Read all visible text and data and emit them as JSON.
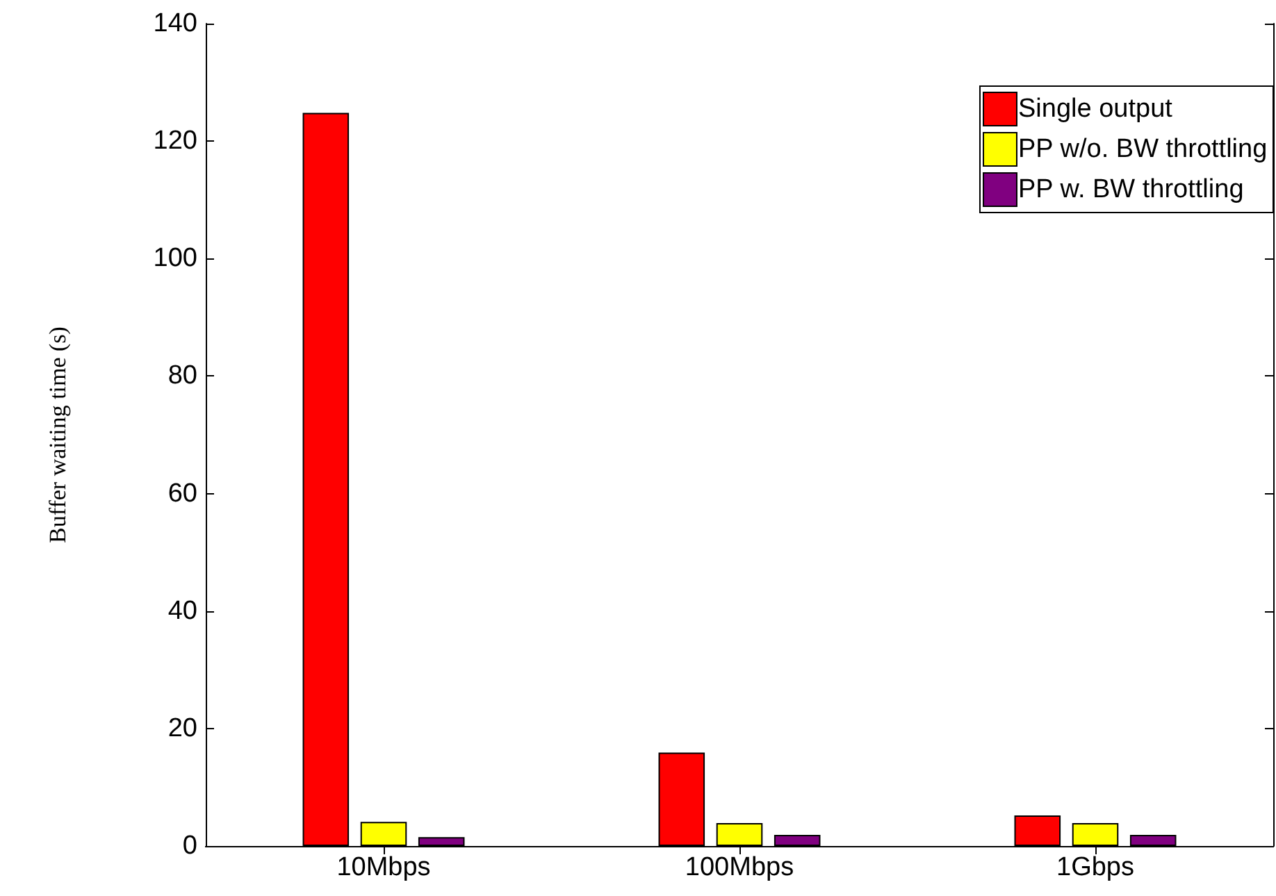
{
  "chart_data": {
    "type": "bar",
    "ylabel": "Buffer waiting time (s)",
    "categories": [
      "10Mbps",
      "100Mbps",
      "1Gbps"
    ],
    "series": [
      {
        "name": "Single output",
        "color": "#ff0000",
        "values": [
          124.8,
          15.9,
          5.2
        ]
      },
      {
        "name": "PP w/o. BW throttling",
        "color": "#ffff00",
        "values": [
          4.1,
          3.9,
          3.9
        ]
      },
      {
        "name": "PP w. BW throttling",
        "color": "#800080",
        "values": [
          1.5,
          1.9,
          1.9
        ]
      }
    ],
    "ylim": [
      0,
      140
    ],
    "yticks": [
      0,
      20,
      40,
      60,
      80,
      100,
      120,
      140
    ],
    "grid": false,
    "legend": "top right"
  }
}
